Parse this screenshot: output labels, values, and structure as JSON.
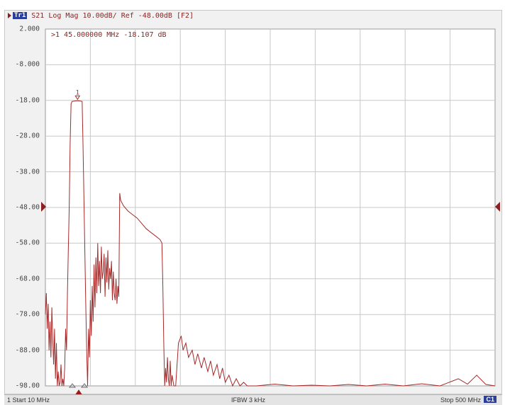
{
  "window": {
    "title": ""
  },
  "trace": {
    "badge": "Tr1",
    "header": "S21 Log Mag 10.00dB/ Ref -48.00dB [F2]"
  },
  "marker": {
    "label": "1",
    "readout": ">1  45.000000 MHz -18.107 dB"
  },
  "y_axis": {
    "labels": [
      "2.000",
      "-8.000",
      "-18.00",
      "-28.00",
      "-38.00",
      "-48.00",
      "-58.00",
      "-68.00",
      "-78.00",
      "-88.00",
      "-98.00"
    ]
  },
  "status": {
    "start": "1  Start 10 MHz",
    "ifbw": "IFBW 3 kHz",
    "stop": "Stop 500 MHz",
    "channel": "C1"
  },
  "colors": {
    "trace": "#a52a2a",
    "grid": "#c8c8c8",
    "plot_bg": "#ffffff",
    "badge": "#2c3f9c"
  },
  "chart_data": {
    "type": "line",
    "title": "",
    "xlabel": "",
    "ylabel": "",
    "xlim": [
      10,
      500
    ],
    "ylim": [
      -98,
      2
    ],
    "grid": true,
    "series": [
      {
        "points": [
          [
            10,
            -78
          ],
          [
            11,
            -72
          ],
          [
            12,
            -82
          ],
          [
            13,
            -75
          ],
          [
            14,
            -88
          ],
          [
            15,
            -80
          ],
          [
            16,
            -90
          ],
          [
            17,
            -76
          ],
          [
            18,
            -85
          ],
          [
            19,
            -92
          ],
          [
            20,
            -82
          ],
          [
            21,
            -96
          ],
          [
            22,
            -86
          ],
          [
            23,
            -98
          ],
          [
            24,
            -94
          ],
          [
            25,
            -98
          ],
          [
            26,
            -97
          ],
          [
            27,
            -92
          ],
          [
            28,
            -98
          ],
          [
            29,
            -96
          ],
          [
            30,
            -98
          ],
          [
            31,
            -93
          ],
          [
            32,
            -82
          ],
          [
            33,
            -88
          ],
          [
            34,
            -72
          ],
          [
            35,
            -60
          ],
          [
            36,
            -48
          ],
          [
            37,
            -30
          ],
          [
            38,
            -19
          ],
          [
            39,
            -18.3
          ],
          [
            42,
            -18.2
          ],
          [
            45,
            -18.1
          ],
          [
            48,
            -18.2
          ],
          [
            50,
            -18.3
          ],
          [
            51,
            -30
          ],
          [
            52,
            -45
          ],
          [
            53,
            -60
          ],
          [
            54,
            -75
          ],
          [
            55,
            -88
          ],
          [
            56,
            -98
          ],
          [
            57,
            -82
          ],
          [
            58,
            -90
          ],
          [
            59,
            -74
          ],
          [
            60,
            -84
          ],
          [
            61,
            -70
          ],
          [
            62,
            -80
          ],
          [
            63,
            -64
          ],
          [
            64,
            -76
          ],
          [
            65,
            -62
          ],
          [
            66,
            -72
          ],
          [
            67,
            -58
          ],
          [
            68,
            -70
          ],
          [
            69,
            -63
          ],
          [
            70,
            -72
          ],
          [
            71,
            -59
          ],
          [
            72,
            -68
          ],
          [
            73,
            -66
          ],
          [
            74,
            -61
          ],
          [
            75,
            -73
          ],
          [
            76,
            -62
          ],
          [
            77,
            -69
          ],
          [
            78,
            -60
          ],
          [
            79,
            -71
          ],
          [
            80,
            -65
          ],
          [
            81,
            -68
          ],
          [
            82,
            -63
          ],
          [
            83,
            -74
          ],
          [
            84,
            -66
          ],
          [
            85,
            -72
          ],
          [
            86,
            -74
          ],
          [
            87,
            -68
          ],
          [
            88,
            -75
          ],
          [
            89,
            -70
          ],
          [
            90,
            -73
          ],
          [
            91,
            -44
          ],
          [
            92,
            -46
          ],
          [
            95,
            -47.5
          ],
          [
            100,
            -49
          ],
          [
            105,
            -50
          ],
          [
            110,
            -51
          ],
          [
            115,
            -52.5
          ],
          [
            120,
            -54
          ],
          [
            125,
            -55
          ],
          [
            130,
            -56
          ],
          [
            135,
            -57
          ],
          [
            137,
            -58
          ],
          [
            138,
            -70
          ],
          [
            139,
            -86
          ],
          [
            140,
            -98
          ],
          [
            141,
            -93
          ],
          [
            142,
            -97
          ],
          [
            143,
            -90
          ],
          [
            144,
            -96
          ],
          [
            145,
            -98
          ],
          [
            146,
            -91
          ],
          [
            147,
            -98
          ],
          [
            148,
            -95
          ],
          [
            150,
            -98
          ],
          [
            152,
            -98
          ],
          [
            155,
            -86
          ],
          [
            158,
            -84
          ],
          [
            160,
            -88
          ],
          [
            163,
            -86
          ],
          [
            166,
            -90
          ],
          [
            170,
            -88
          ],
          [
            173,
            -92
          ],
          [
            176,
            -89
          ],
          [
            180,
            -93
          ],
          [
            183,
            -90
          ],
          [
            187,
            -94
          ],
          [
            190,
            -91
          ],
          [
            193,
            -95
          ],
          [
            197,
            -92
          ],
          [
            200,
            -96
          ],
          [
            203,
            -93
          ],
          [
            206,
            -97
          ],
          [
            210,
            -95
          ],
          [
            214,
            -98
          ],
          [
            218,
            -96
          ],
          [
            222,
            -98
          ],
          [
            226,
            -97
          ],
          [
            230,
            -98
          ],
          [
            240,
            -98
          ],
          [
            260,
            -97.5
          ],
          [
            280,
            -98
          ],
          [
            300,
            -97.8
          ],
          [
            320,
            -98
          ],
          [
            340,
            -97.6
          ],
          [
            360,
            -98
          ],
          [
            380,
            -97.5
          ],
          [
            400,
            -98
          ],
          [
            420,
            -97.4
          ],
          [
            440,
            -98
          ],
          [
            460,
            -96
          ],
          [
            470,
            -97.5
          ],
          [
            480,
            -95
          ],
          [
            490,
            -97.6
          ],
          [
            500,
            -98
          ]
        ]
      }
    ],
    "annotations": [
      {
        "type": "marker",
        "label": "1",
        "x": 45,
        "y": -18.107
      }
    ]
  }
}
